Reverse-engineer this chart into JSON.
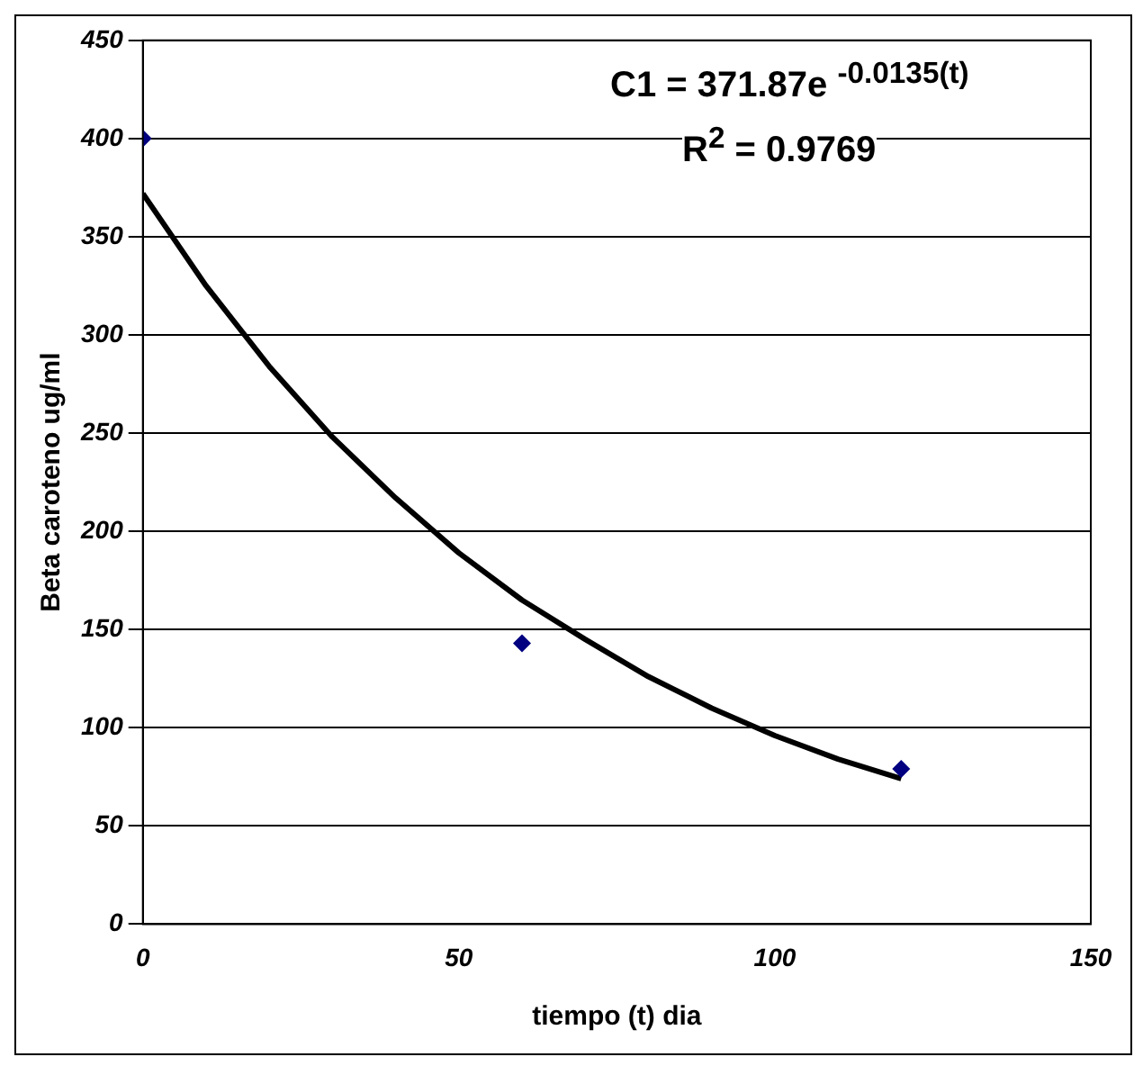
{
  "chart_data": {
    "type": "scatter",
    "xlabel": "tiempo (t) dia",
    "ylabel": "Beta caroteno ug/ml",
    "xlim": [
      0,
      150
    ],
    "xticks": [
      0,
      50,
      100,
      150
    ],
    "ylim": [
      0,
      450
    ],
    "yticks": [
      0,
      50,
      100,
      150,
      200,
      250,
      300,
      350,
      400,
      450
    ],
    "grid": "y",
    "legend": false,
    "marker": "diamond",
    "series": [
      {
        "type": "scatter",
        "color": "#000080",
        "x": [
          0,
          60,
          120
        ],
        "values": [
          400,
          143,
          79
        ]
      },
      {
        "type": "line",
        "color": "#000000",
        "marker": "none",
        "x": [
          0,
          10,
          20,
          30,
          40,
          50,
          60,
          70,
          80,
          90,
          100,
          110,
          120
        ],
        "values": [
          372,
          325,
          284,
          248,
          217,
          189,
          165,
          145,
          126,
          110,
          96,
          84,
          74
        ]
      }
    ],
    "annotations": [
      "C1 = 371.87e $^{-0.0135(t)}$",
      "R$^{2}$ = 0.9769"
    ]
  }
}
